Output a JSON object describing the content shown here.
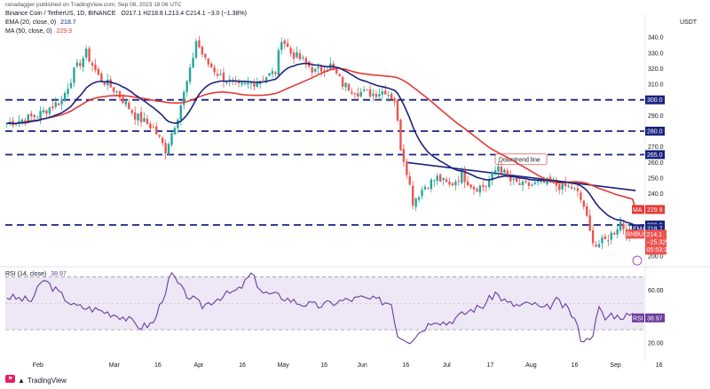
{
  "header": {
    "author_line": "ranadagger published on TradingView.com, Sep 08, 2023 18:06 UTC",
    "symbol_line": "Binance Coin / TetherUS, 1D, BINANCE",
    "ohlc": "O217.1 H218.8 L213.4 C214.1 −3.0 (−1.38%)",
    "ema_label": "EMA (20, close, 0)",
    "ema_value": "218.7",
    "ma_label": "MA (50, close, 0)",
    "ma_value": "229.9",
    "rsi_label": "RSI (14, close)",
    "rsi_value": "38.97"
  },
  "currency": "USDT",
  "watermark": "TradingView",
  "colors": {
    "up": "#26a69a",
    "down": "#ef5350",
    "ema": "#1a237e",
    "ma": "#e53935",
    "levels": "#1a237e",
    "trendline": "#1a237e",
    "rsi": "#6a3d9a",
    "rsi_band": "#ede7f6"
  },
  "chart_data": [
    {
      "type": "candlestick",
      "title": "Binance Coin / TetherUS, 1D, BINANCE",
      "x_ticks": [
        "Feb",
        "Mar",
        "16",
        "Apr",
        "16",
        "May",
        "16",
        "Jun",
        "16",
        "Jul",
        "17",
        "Aug",
        "16",
        "Sep",
        "16"
      ],
      "y_ticks": [
        200,
        210,
        220,
        230,
        240,
        250,
        260,
        270,
        280,
        290,
        300,
        310,
        320,
        330,
        340
      ],
      "ylim": [
        195,
        348
      ],
      "horizontal_levels": [
        {
          "value": 300.0,
          "label": "300.0"
        },
        {
          "value": 280.0,
          "label": "280.0"
        },
        {
          "value": 265.0,
          "label": "265.0"
        },
        {
          "value": 220.0,
          "label": "220.0"
        }
      ],
      "annotations": [
        "Downtrend line"
      ],
      "price_tags": [
        {
          "label": "MA",
          "value": "229.9"
        },
        {
          "label": "EMA",
          "value": "218.7"
        },
        {
          "label": "BNBUSDT",
          "value": "214.1",
          "change": "−25.32%",
          "countdown": "05:53:14"
        }
      ],
      "series": [
        {
          "name": "BNBUSDT",
          "key_points": [
            [
              0,
              285
            ],
            [
              10,
              290
            ],
            [
              18,
              300
            ],
            [
              22,
              318
            ],
            [
              26,
              330
            ],
            [
              30,
              315
            ],
            [
              36,
              305
            ],
            [
              42,
              290
            ],
            [
              48,
              282
            ],
            [
              52,
              268
            ],
            [
              56,
              290
            ],
            [
              60,
              318
            ],
            [
              62,
              338
            ],
            [
              65,
              325
            ],
            [
              70,
              315
            ],
            [
              76,
              308
            ],
            [
              82,
              312
            ],
            [
              88,
              318
            ],
            [
              90,
              340
            ],
            [
              93,
              330
            ],
            [
              97,
              325
            ],
            [
              101,
              318
            ],
            [
              106,
              322
            ],
            [
              110,
              310
            ],
            [
              115,
              305
            ],
            [
              120,
              304
            ],
            [
              124,
              306
            ],
            [
              127,
              300
            ],
            [
              129,
              270
            ],
            [
              131,
              255
            ],
            [
              133,
              235
            ],
            [
              137,
              245
            ],
            [
              141,
              250
            ],
            [
              145,
              245
            ],
            [
              149,
              252
            ],
            [
              153,
              244
            ],
            [
              157,
              245
            ],
            [
              161,
              258
            ],
            [
              165,
              248
            ],
            [
              169,
              245
            ],
            [
              173,
              246
            ],
            [
              177,
              247
            ],
            [
              181,
              245
            ],
            [
              185,
              244
            ],
            [
              187,
              240
            ],
            [
              189,
              232
            ],
            [
              191,
              215
            ],
            [
              193,
              207
            ],
            [
              196,
              210
            ],
            [
              199,
              216
            ],
            [
              201,
              222
            ],
            [
              203,
              215
            ],
            [
              206,
              214
            ]
          ]
        },
        {
          "name": "EMA (20, close, 0)",
          "last": 218.7
        },
        {
          "name": "MA (50, close, 0)",
          "last": 229.9
        }
      ]
    },
    {
      "type": "line",
      "title": "RSI (14, close)",
      "y_ticks": [
        20,
        40,
        60
      ],
      "ylim": [
        10,
        75
      ],
      "band": [
        30,
        70
      ],
      "series": [
        {
          "name": "RSI (14, close)",
          "key_points": [
            [
              0,
              55
            ],
            [
              8,
              52
            ],
            [
              12,
              68
            ],
            [
              16,
              60
            ],
            [
              22,
              48
            ],
            [
              30,
              45
            ],
            [
              38,
              40
            ],
            [
              44,
              32
            ],
            [
              48,
              35
            ],
            [
              52,
              60
            ],
            [
              54,
              72
            ],
            [
              58,
              58
            ],
            [
              64,
              48
            ],
            [
              70,
              55
            ],
            [
              76,
              60
            ],
            [
              80,
              72
            ],
            [
              84,
              58
            ],
            [
              90,
              55
            ],
            [
              96,
              50
            ],
            [
              102,
              48
            ],
            [
              110,
              52
            ],
            [
              116,
              54
            ],
            [
              122,
              52
            ],
            [
              126,
              50
            ],
            [
              128,
              26
            ],
            [
              132,
              22
            ],
            [
              136,
              30
            ],
            [
              140,
              38
            ],
            [
              144,
              35
            ],
            [
              148,
              40
            ],
            [
              152,
              45
            ],
            [
              156,
              48
            ],
            [
              160,
              58
            ],
            [
              164,
              50
            ],
            [
              168,
              48
            ],
            [
              172,
              50
            ],
            [
              176,
              45
            ],
            [
              180,
              52
            ],
            [
              184,
              45
            ],
            [
              186,
              38
            ],
            [
              188,
              24
            ],
            [
              190,
              22
            ],
            [
              192,
              28
            ],
            [
              194,
              46
            ],
            [
              196,
              38
            ],
            [
              198,
              42
            ],
            [
              200,
              40
            ],
            [
              203,
              41
            ],
            [
              206,
              38.97
            ]
          ]
        }
      ]
    }
  ]
}
